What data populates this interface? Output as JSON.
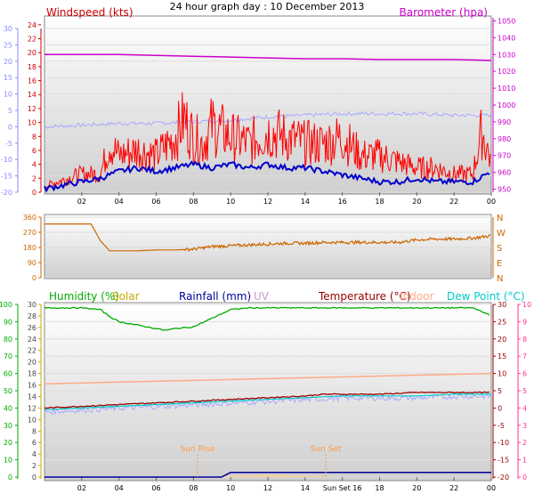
{
  "title": "24 hour graph day : 10 December 2013",
  "colors": {
    "windspeed": "#ff0000",
    "windgust_fill": "#ff0000",
    "windavg": "#0000cc",
    "barometer": "#cc00cc",
    "temp_left_axis": "#8888ff",
    "temp_trace": "#a8a8ff",
    "direction": "#cc6600",
    "humidity": "#00aa00",
    "solar": "#ccaa00",
    "rainfall": "#000099",
    "uv": "#cc99cc",
    "temperature": "#990000",
    "indoor": "#ffaa88",
    "dewpoint": "#00cccc",
    "right_axis3": "#ff3399",
    "sun": "#ff9944"
  },
  "labels": {
    "windspeed": "Windspeed (kts)",
    "barometer": "Barometer (hpa)",
    "humidity": "Humidity (%)",
    "solar": "Solar",
    "rainfall": "Rainfall (mm)",
    "uv": "UV",
    "temperature": "Temperature (°C)",
    "indoor": "Indoor",
    "dewpoint": "Dew Point (°C)",
    "sunrise": "Sun Rise",
    "sunset": "Sun Set"
  },
  "x_ticks": [
    "02",
    "04",
    "06",
    "08",
    "10",
    "12",
    "14",
    "16",
    "18",
    "20",
    "22",
    "00"
  ],
  "x_ticks_bottom": [
    "02",
    "04",
    "06",
    "08",
    "10",
    "12",
    "14",
    "Sun Set 16",
    "18",
    "20",
    "22",
    "00"
  ],
  "chart_data": [
    {
      "type": "line",
      "x_unit": "hour",
      "xlim": [
        0,
        24
      ],
      "left_axis_outer": [
        30,
        25,
        20,
        15,
        10,
        5,
        0,
        -5,
        -10,
        -15,
        -20
      ],
      "left_axis_inner": [
        24,
        22,
        20,
        18,
        16,
        14,
        12,
        10,
        8,
        6,
        4,
        2,
        0
      ],
      "ylim_windspeed": [
        0,
        25
      ],
      "right_axis": [
        1050,
        1040,
        1030,
        1020,
        1010,
        1000,
        990,
        980,
        970,
        960,
        950
      ],
      "ylim_barometer": [
        945,
        1055
      ],
      "series": [
        {
          "name": "Barometer (hpa)",
          "x": [
            0,
            2,
            4,
            6,
            8,
            10,
            12,
            14,
            16,
            18,
            20,
            22,
            24
          ],
          "y": [
            1030,
            1030,
            1030,
            1029.5,
            1029,
            1028.5,
            1028,
            1027.5,
            1027.5,
            1027,
            1027,
            1027,
            1026.5
          ]
        },
        {
          "name": "Windspeed (kts)",
          "x": [
            0,
            1,
            2,
            3,
            3.5,
            4,
            5,
            6,
            7,
            7.5,
            8,
            8.5,
            9,
            10,
            11,
            12,
            13,
            14,
            15,
            16,
            17,
            18,
            19,
            20,
            21,
            22,
            23,
            23.5,
            24
          ],
          "y": [
            1,
            2,
            3,
            3,
            8,
            6,
            7,
            6,
            9,
            12,
            9,
            8,
            11,
            9,
            8,
            10,
            9,
            8,
            8,
            9,
            6,
            6,
            5,
            4,
            4,
            3,
            3,
            10,
            5
          ]
        },
        {
          "name": "Wind avg",
          "x": [
            0,
            1,
            2,
            3,
            4,
            5,
            6,
            7,
            8,
            9,
            10,
            11,
            12,
            13,
            14,
            15,
            16,
            17,
            18,
            19,
            20,
            21,
            22,
            23,
            24
          ],
          "y": [
            0.5,
            1,
            1.5,
            2,
            3,
            3.5,
            3,
            3.5,
            4,
            3.5,
            4,
            3.5,
            4,
            3.5,
            3.5,
            3,
            2.5,
            2,
            1.5,
            1.5,
            2,
            1.5,
            1.5,
            1.5,
            3
          ]
        },
        {
          "name": "Temperature",
          "x": [
            0,
            2,
            4,
            6,
            8,
            10,
            12,
            14,
            16,
            18,
            20,
            22,
            24
          ],
          "y": [
            0,
            0.5,
            1,
            1,
            1.5,
            2,
            3,
            3.5,
            4,
            4,
            4,
            3.5,
            3.5
          ]
        }
      ]
    },
    {
      "type": "line",
      "x_unit": "hour",
      "xlim": [
        0,
        24
      ],
      "left_axis": [
        360,
        270,
        180,
        90,
        0
      ],
      "right_axis": [
        "N",
        "W",
        "S",
        "E",
        "N"
      ],
      "ylim": [
        0,
        360
      ],
      "series": [
        {
          "name": "Wind direction",
          "x": [
            0,
            1,
            2,
            2.5,
            3,
            3.5,
            4,
            5,
            6,
            7,
            8,
            9,
            10,
            11,
            12,
            13,
            14,
            15,
            16,
            17,
            18,
            19,
            20,
            21,
            22,
            23,
            24
          ],
          "y": [
            320,
            320,
            320,
            320,
            220,
            160,
            160,
            160,
            165,
            165,
            170,
            185,
            190,
            195,
            200,
            205,
            205,
            210,
            210,
            210,
            210,
            210,
            225,
            230,
            230,
            235,
            250
          ]
        }
      ]
    },
    {
      "type": "line",
      "x_unit": "hour",
      "xlim": [
        0,
        24
      ],
      "axis_humidity": [
        100,
        90,
        80,
        70,
        60,
        50,
        40,
        30,
        20,
        10,
        0
      ],
      "axis_solar": [
        30,
        28,
        26,
        24,
        22,
        20,
        18,
        16,
        14,
        12,
        10,
        8,
        6,
        4,
        2,
        0
      ],
      "axis_temperature": [
        30,
        25,
        20,
        15,
        10,
        5,
        0,
        -5,
        -10,
        -15,
        -20
      ],
      "axis_rightmost": [
        10,
        9,
        8,
        7,
        6,
        5,
        4,
        3,
        2,
        1,
        0
      ],
      "ylim_humidity": [
        0,
        100
      ],
      "ylim_temperature": [
        -20,
        30
      ],
      "series": [
        {
          "name": "Humidity (%)",
          "x": [
            0,
            1,
            2,
            3,
            3.5,
            4,
            5,
            6,
            6.5,
            7,
            8,
            9,
            10,
            11,
            12,
            13,
            14,
            15,
            16,
            17,
            18,
            19,
            20,
            21,
            22,
            23,
            23.5,
            24
          ],
          "y": [
            98,
            98,
            98,
            97,
            93,
            90,
            88,
            86,
            85,
            86,
            87,
            92,
            97,
            98,
            98,
            98,
            98,
            98,
            98,
            98,
            98,
            98,
            98,
            98,
            98,
            98,
            96,
            93
          ]
        },
        {
          "name": "Temperature (°C)",
          "x": [
            0,
            2,
            4,
            6,
            8,
            10,
            12,
            14,
            15,
            16,
            18,
            20,
            22,
            24
          ],
          "y": [
            0,
            0.5,
            1,
            1.5,
            2,
            2.5,
            3,
            3.5,
            4,
            4,
            4,
            4.5,
            4.5,
            4.5
          ]
        },
        {
          "name": "Indoor",
          "x": [
            0,
            4,
            8,
            12,
            16,
            20,
            24
          ],
          "y": [
            7,
            7.5,
            8,
            8.5,
            9,
            9.5,
            10
          ]
        },
        {
          "name": "Dew Point (°C)",
          "x": [
            0,
            2,
            4,
            6,
            8,
            10,
            12,
            14,
            16,
            18,
            20,
            22,
            24
          ],
          "y": [
            -0.5,
            0,
            0.5,
            1,
            1.5,
            2,
            2.5,
            3,
            3.5,
            3.5,
            3.5,
            4,
            4
          ]
        },
        {
          "name": "Rainfall (mm)",
          "x": [
            0,
            6,
            9.5,
            10,
            12,
            16,
            20,
            24
          ],
          "y": [
            0,
            0,
            0,
            0.8,
            0.8,
            0.8,
            0.8,
            0.8
          ]
        },
        {
          "name": "Solar",
          "x": [
            8,
            10,
            12,
            14,
            15,
            16
          ],
          "y": [
            0,
            0.2,
            0.4,
            0.2,
            0.1,
            0
          ]
        }
      ]
    }
  ]
}
